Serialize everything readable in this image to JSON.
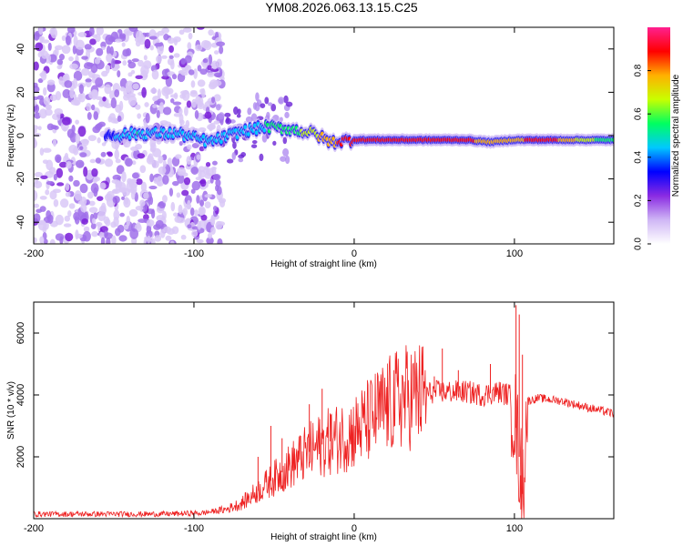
{
  "title": "YM08.2026.063.13.15.C25",
  "chart_data": [
    {
      "type": "heatmap",
      "title": "YM08.2026.063.13.15.C25",
      "xlabel": "Height of straight line (km)",
      "ylabel": "Frequency (Hz)",
      "xlim": [
        -200,
        162
      ],
      "ylim": [
        -50,
        50
      ],
      "x_ticks": [
        -200,
        -100,
        0,
        100
      ],
      "y_ticks": [
        -40,
        -20,
        0,
        20,
        40
      ],
      "colorbar": {
        "label": "Normalized spectral amplitude",
        "range": [
          0,
          1
        ],
        "ticks": [
          "0.0",
          "0.2",
          "0.4",
          "0.6",
          "0.8"
        ],
        "colors": [
          "#ffffff",
          "#cfb6f5",
          "#8a2be2",
          "#0000ff",
          "#00c8ff",
          "#00ff60",
          "#c8ff00",
          "#ffb000",
          "#ff0000",
          "#ff2090"
        ]
      },
      "ridge": [
        {
          "x": -155,
          "f": 0,
          "amp": 0.35
        },
        {
          "x": -135,
          "f": 1,
          "amp": 0.5
        },
        {
          "x": -110,
          "f": 1,
          "amp": 0.45
        },
        {
          "x": -90,
          "f": -3,
          "amp": 0.4
        },
        {
          "x": -70,
          "f": 2,
          "amp": 0.45
        },
        {
          "x": -55,
          "f": 4,
          "amp": 0.5
        },
        {
          "x": -40,
          "f": 3,
          "amp": 0.55
        },
        {
          "x": -25,
          "f": 1,
          "amp": 0.7
        },
        {
          "x": -15,
          "f": -3,
          "amp": 0.8
        },
        {
          "x": 0,
          "f": -2,
          "amp": 0.9
        },
        {
          "x": 40,
          "f": -2,
          "amp": 0.9
        },
        {
          "x": 70,
          "f": -2,
          "amp": 0.85
        },
        {
          "x": 85,
          "f": -3,
          "amp": 0.8
        },
        {
          "x": 100,
          "f": -2,
          "amp": 0.8
        },
        {
          "x": 120,
          "f": -2,
          "amp": 0.9
        },
        {
          "x": 162,
          "f": -2,
          "amp": 0.5
        }
      ],
      "noise_region_x": [
        -200,
        -82
      ]
    },
    {
      "type": "line",
      "xlabel": "Height of straight line (km)",
      "ylabel": "SNR (10 * v/v)",
      "xlim": [
        -200,
        162
      ],
      "ylim": [
        0,
        7000
      ],
      "x_ticks": [
        -200,
        -100,
        0,
        100
      ],
      "y_ticks": [
        2000,
        4000,
        6000
      ],
      "series": [
        {
          "name": "SNR",
          "color": "#ee2222",
          "envelope": {
            "x": [
              -200,
              -120,
              -95,
              -80,
              -70,
              -60,
              -50,
              -40,
              -30,
              -20,
              -10,
              0,
              10,
              20,
              30,
              40,
              50,
              60,
              70,
              80,
              90,
              97,
              100,
              103,
              105,
              108,
              115,
              130,
              145,
              162
            ],
            "y": [
              150,
              150,
              180,
              300,
              500,
              900,
              1300,
              1700,
              2100,
              2400,
              2600,
              2800,
              3200,
              3600,
              3900,
              4000,
              4100,
              4100,
              4100,
              4000,
              4100,
              4000,
              3400,
              2000,
              800,
              3800,
              3900,
              3800,
              3600,
              3400
            ]
          },
          "spikes": [
            {
              "x": -60,
              "y": 2000
            },
            {
              "x": -52,
              "y": 3000
            },
            {
              "x": -45,
              "y": 2600
            },
            {
              "x": -28,
              "y": 3700
            },
            {
              "x": -20,
              "y": 4200
            },
            {
              "x": -15,
              "y": 3400
            },
            {
              "x": 50,
              "y": 4600
            },
            {
              "x": 55,
              "y": 5500
            },
            {
              "x": 65,
              "y": 4800
            },
            {
              "x": 85,
              "y": 5000
            },
            {
              "x": 101,
              "y": 6900
            },
            {
              "x": 103,
              "y": 6600
            },
            {
              "x": 105,
              "y": 5300
            },
            {
              "x": 104,
              "y": 300
            }
          ]
        }
      ]
    }
  ]
}
